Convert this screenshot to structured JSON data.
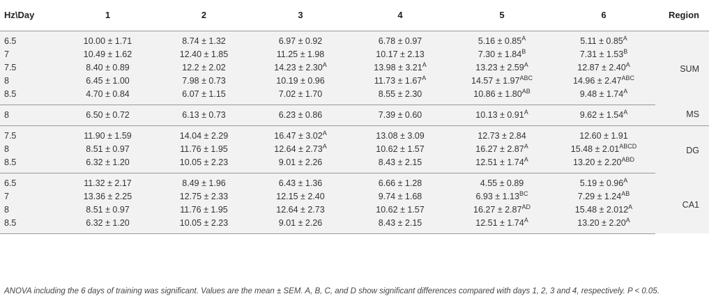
{
  "table": {
    "headers": [
      "Hz\\Day",
      "1",
      "2",
      "3",
      "4",
      "5",
      "6",
      "Region"
    ],
    "groups": [
      {
        "region": "SUM",
        "rows": [
          {
            "hz": "6.5",
            "cells": [
              {
                "v": "10.00 ± 1.71",
                "s": ""
              },
              {
                "v": "8.74 ± 1.32",
                "s": ""
              },
              {
                "v": "6.97 ± 0.92",
                "s": ""
              },
              {
                "v": "6.78 ± 0.97",
                "s": ""
              },
              {
                "v": "5.16 ± 0.85",
                "s": "A"
              },
              {
                "v": "5.11 ± 0.85",
                "s": "A"
              }
            ]
          },
          {
            "hz": "7",
            "cells": [
              {
                "v": "10.49 ± 1.62",
                "s": ""
              },
              {
                "v": "12.40 ± 1.85",
                "s": ""
              },
              {
                "v": "11.25 ± 1.98",
                "s": ""
              },
              {
                "v": "10.17 ± 2.13",
                "s": ""
              },
              {
                "v": "7.30 ± 1.84",
                "s": "B"
              },
              {
                "v": "7.31 ± 1.53",
                "s": "B"
              }
            ]
          },
          {
            "hz": "7.5",
            "cells": [
              {
                "v": "8.40 ± 0.89",
                "s": ""
              },
              {
                "v": "12.2 ± 2.02",
                "s": ""
              },
              {
                "v": "14.23 ± 2.30",
                "s": "A"
              },
              {
                "v": "13.98 ± 3.21",
                "s": "A"
              },
              {
                "v": "13.23 ± 2.59",
                "s": "A"
              },
              {
                "v": "12.87 ± 2.40",
                "s": "A"
              }
            ]
          },
          {
            "hz": "8",
            "cells": [
              {
                "v": "6.45 ± 1.00",
                "s": ""
              },
              {
                "v": "7.98 ± 0.73",
                "s": ""
              },
              {
                "v": "10.19 ± 0.96",
                "s": ""
              },
              {
                "v": "11.73 ± 1.67",
                "s": "A"
              },
              {
                "v": "14.57 ± 1.97",
                "s": "ABC"
              },
              {
                "v": "14.96 ± 2.47",
                "s": "ABC"
              }
            ]
          },
          {
            "hz": "8.5",
            "cells": [
              {
                "v": "4.70 ± 0.84",
                "s": ""
              },
              {
                "v": "6.07 ± 1.15",
                "s": ""
              },
              {
                "v": "7.02 ± 1.70",
                "s": ""
              },
              {
                "v": "8.55 ± 2.30",
                "s": ""
              },
              {
                "v": "10.86 ± 1.80",
                "s": "AB"
              },
              {
                "v": "9.48 ± 1.74",
                "s": "A"
              }
            ]
          }
        ]
      },
      {
        "region": "MS",
        "rows": [
          {
            "hz": "8",
            "cells": [
              {
                "v": "6.50 ± 0.72",
                "s": ""
              },
              {
                "v": "6.13 ± 0.73",
                "s": ""
              },
              {
                "v": "6.23 ± 0.86",
                "s": ""
              },
              {
                "v": "7.39 ± 0.60",
                "s": ""
              },
              {
                "v": "10.13 ± 0.91",
                "s": "A"
              },
              {
                "v": "9.62 ± 1.54",
                "s": "A"
              }
            ]
          }
        ]
      },
      {
        "region": "DG",
        "rows": [
          {
            "hz": "7.5",
            "cells": [
              {
                "v": "11.90 ± 1.59",
                "s": ""
              },
              {
                "v": "14.04 ± 2.29",
                "s": ""
              },
              {
                "v": "16.47 ± 3.02",
                "s": "A"
              },
              {
                "v": "13.08 ± 3.09",
                "s": ""
              },
              {
                "v": "12.73 ± 2.84",
                "s": ""
              },
              {
                "v": "12.60 ± 1.91",
                "s": ""
              }
            ]
          },
          {
            "hz": "8",
            "cells": [
              {
                "v": "8.51 ± 0.97",
                "s": ""
              },
              {
                "v": "11.76 ± 1.95",
                "s": ""
              },
              {
                "v": "12.64 ± 2.73",
                "s": "A"
              },
              {
                "v": "10.62 ± 1.57",
                "s": ""
              },
              {
                "v": "16.27 ± 2.87",
                "s": "A"
              },
              {
                "v": "15.48 ± 2.01",
                "s": "ABCD"
              }
            ]
          },
          {
            "hz": "8.5",
            "cells": [
              {
                "v": "6.32 ± 1.20",
                "s": ""
              },
              {
                "v": "10.05 ± 2.23",
                "s": ""
              },
              {
                "v": "9.01 ± 2.26",
                "s": ""
              },
              {
                "v": "8.43 ± 2.15",
                "s": ""
              },
              {
                "v": "12.51 ± 1.74",
                "s": "A"
              },
              {
                "v": "13.20 ± 2.20",
                "s": "ABD"
              }
            ]
          }
        ]
      },
      {
        "region": "CA1",
        "rows": [
          {
            "hz": "6.5",
            "cells": [
              {
                "v": "11.32 ± 2.17",
                "s": ""
              },
              {
                "v": "8.49 ± 1.96",
                "s": ""
              },
              {
                "v": "6.43 ± 1.36",
                "s": ""
              },
              {
                "v": "6.66 ± 1.28",
                "s": ""
              },
              {
                "v": "4.55 ± 0.89",
                "s": ""
              },
              {
                "v": "5.19 ± 0.96",
                "s": "A"
              }
            ]
          },
          {
            "hz": "7",
            "cells": [
              {
                "v": "13.36 ± 2.25",
                "s": ""
              },
              {
                "v": "12.75 ± 2.33",
                "s": ""
              },
              {
                "v": "12.15 ± 2.40",
                "s": ""
              },
              {
                "v": "9.74 ± 1.68",
                "s": ""
              },
              {
                "v": "6.93 ± 1.13",
                "s": "BC"
              },
              {
                "v": "7.29 ± 1.24",
                "s": "AB"
              }
            ]
          },
          {
            "hz": "8",
            "cells": [
              {
                "v": "8.51 ± 0.97",
                "s": ""
              },
              {
                "v": "11.76 ± 1.95",
                "s": ""
              },
              {
                "v": "12.64 ± 2.73",
                "s": ""
              },
              {
                "v": "10.62 ± 1.57",
                "s": ""
              },
              {
                "v": "16.27 ± 2.87",
                "s": "AD"
              },
              {
                "v": "15.48 ± 2.012",
                "s": "A"
              }
            ]
          },
          {
            "hz": "8.5",
            "cells": [
              {
                "v": "6.32 ± 1.20",
                "s": ""
              },
              {
                "v": "10.05 ± 2.23",
                "s": ""
              },
              {
                "v": "9.01 ± 2.26",
                "s": ""
              },
              {
                "v": "8.43 ± 2.15",
                "s": ""
              },
              {
                "v": "12.51 ± 1.74",
                "s": "A"
              },
              {
                "v": "13.20 ± 2.20",
                "s": "A"
              }
            ]
          }
        ]
      }
    ]
  },
  "footnote": "ANOVA including the 6 days of training was significant. Values are the mean ± SEM. A, B, C, and D show significant differences compared with days 1, 2, 3 and 4, respectively. P < 0.05."
}
